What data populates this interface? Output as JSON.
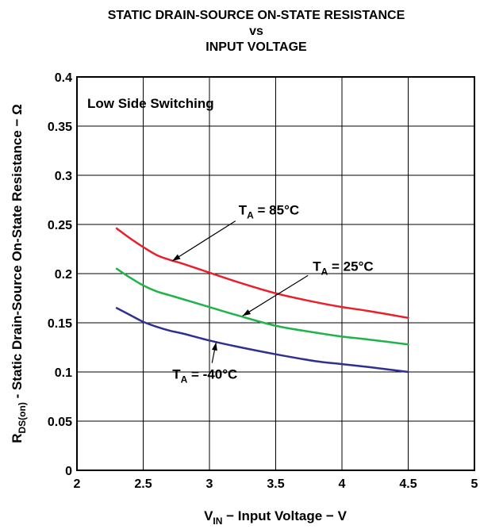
{
  "chart_data": {
    "type": "line",
    "title": {
      "line1": "STATIC DRAIN-SOURCE ON-STATE RESISTANCE",
      "line2": "vs",
      "line3": "INPUT VOLTAGE"
    },
    "xlabel": {
      "main": "V",
      "sub": "IN",
      "rest": " − Input Voltage − V"
    },
    "ylabel": {
      "main": "R",
      "sub": "DS(on)",
      "rest": " - Static Drain-Source On-State Resistance  −  Ω"
    },
    "xlim": [
      2,
      5
    ],
    "ylim": [
      0,
      0.4
    ],
    "x_ticks": [
      2,
      2.5,
      3,
      3.5,
      4,
      4.5,
      5
    ],
    "x_tick_labels": [
      "2",
      "2.5",
      "3",
      "3.5",
      "4",
      "4.5",
      "5"
    ],
    "y_ticks": [
      0,
      0.05,
      0.1,
      0.15,
      0.2,
      0.25,
      0.3,
      0.35,
      0.4
    ],
    "y_tick_labels": [
      "0",
      "0.05",
      "0.1",
      "0.15",
      "0.2",
      "0.25",
      "0.3",
      "0.35",
      "0.4"
    ],
    "grid": true,
    "annotation_box": "Low Side Switching",
    "series": [
      {
        "name": "85°C",
        "color": "#e8202a",
        "x": [
          2.3,
          2.4,
          2.5,
          2.6,
          2.7,
          2.8,
          3.0,
          3.2,
          3.5,
          3.8,
          4.0,
          4.2,
          4.5
        ],
        "y": [
          0.246,
          0.236,
          0.227,
          0.219,
          0.214,
          0.21,
          0.201,
          0.192,
          0.18,
          0.171,
          0.166,
          0.162,
          0.155
        ]
      },
      {
        "name": "25°C",
        "color": "#1fb34a",
        "x": [
          2.3,
          2.4,
          2.5,
          2.6,
          2.7,
          2.8,
          3.0,
          3.2,
          3.5,
          3.8,
          4.0,
          4.2,
          4.5
        ],
        "y": [
          0.205,
          0.196,
          0.188,
          0.182,
          0.178,
          0.174,
          0.166,
          0.158,
          0.147,
          0.14,
          0.136,
          0.133,
          0.128
        ]
      },
      {
        "name": "-40°C",
        "color": "#2e3192",
        "x": [
          2.3,
          2.4,
          2.5,
          2.6,
          2.7,
          2.8,
          3.0,
          3.2,
          3.5,
          3.8,
          4.0,
          4.2,
          4.5
        ],
        "y": [
          0.165,
          0.158,
          0.151,
          0.146,
          0.142,
          0.139,
          0.132,
          0.126,
          0.118,
          0.111,
          0.108,
          0.105,
          0.1
        ]
      }
    ],
    "annotations": [
      {
        "prefix": "T",
        "sub": "A",
        "text": "  = 85°C",
        "series": "85°C",
        "point_x": 2.72,
        "point_y": 0.213,
        "label_x": 3.22,
        "label_y": 0.26
      },
      {
        "prefix": "T",
        "sub": "A",
        "text": "  = 25°C",
        "series": "25°C",
        "point_x": 3.25,
        "point_y": 0.157,
        "label_x": 3.78,
        "label_y": 0.203
      },
      {
        "prefix": "T",
        "sub": "A",
        "text": "  = -40°C",
        "series": "-40°C",
        "point_x": 3.05,
        "point_y": 0.13,
        "label_x": 2.72,
        "label_y": 0.093
      }
    ]
  }
}
